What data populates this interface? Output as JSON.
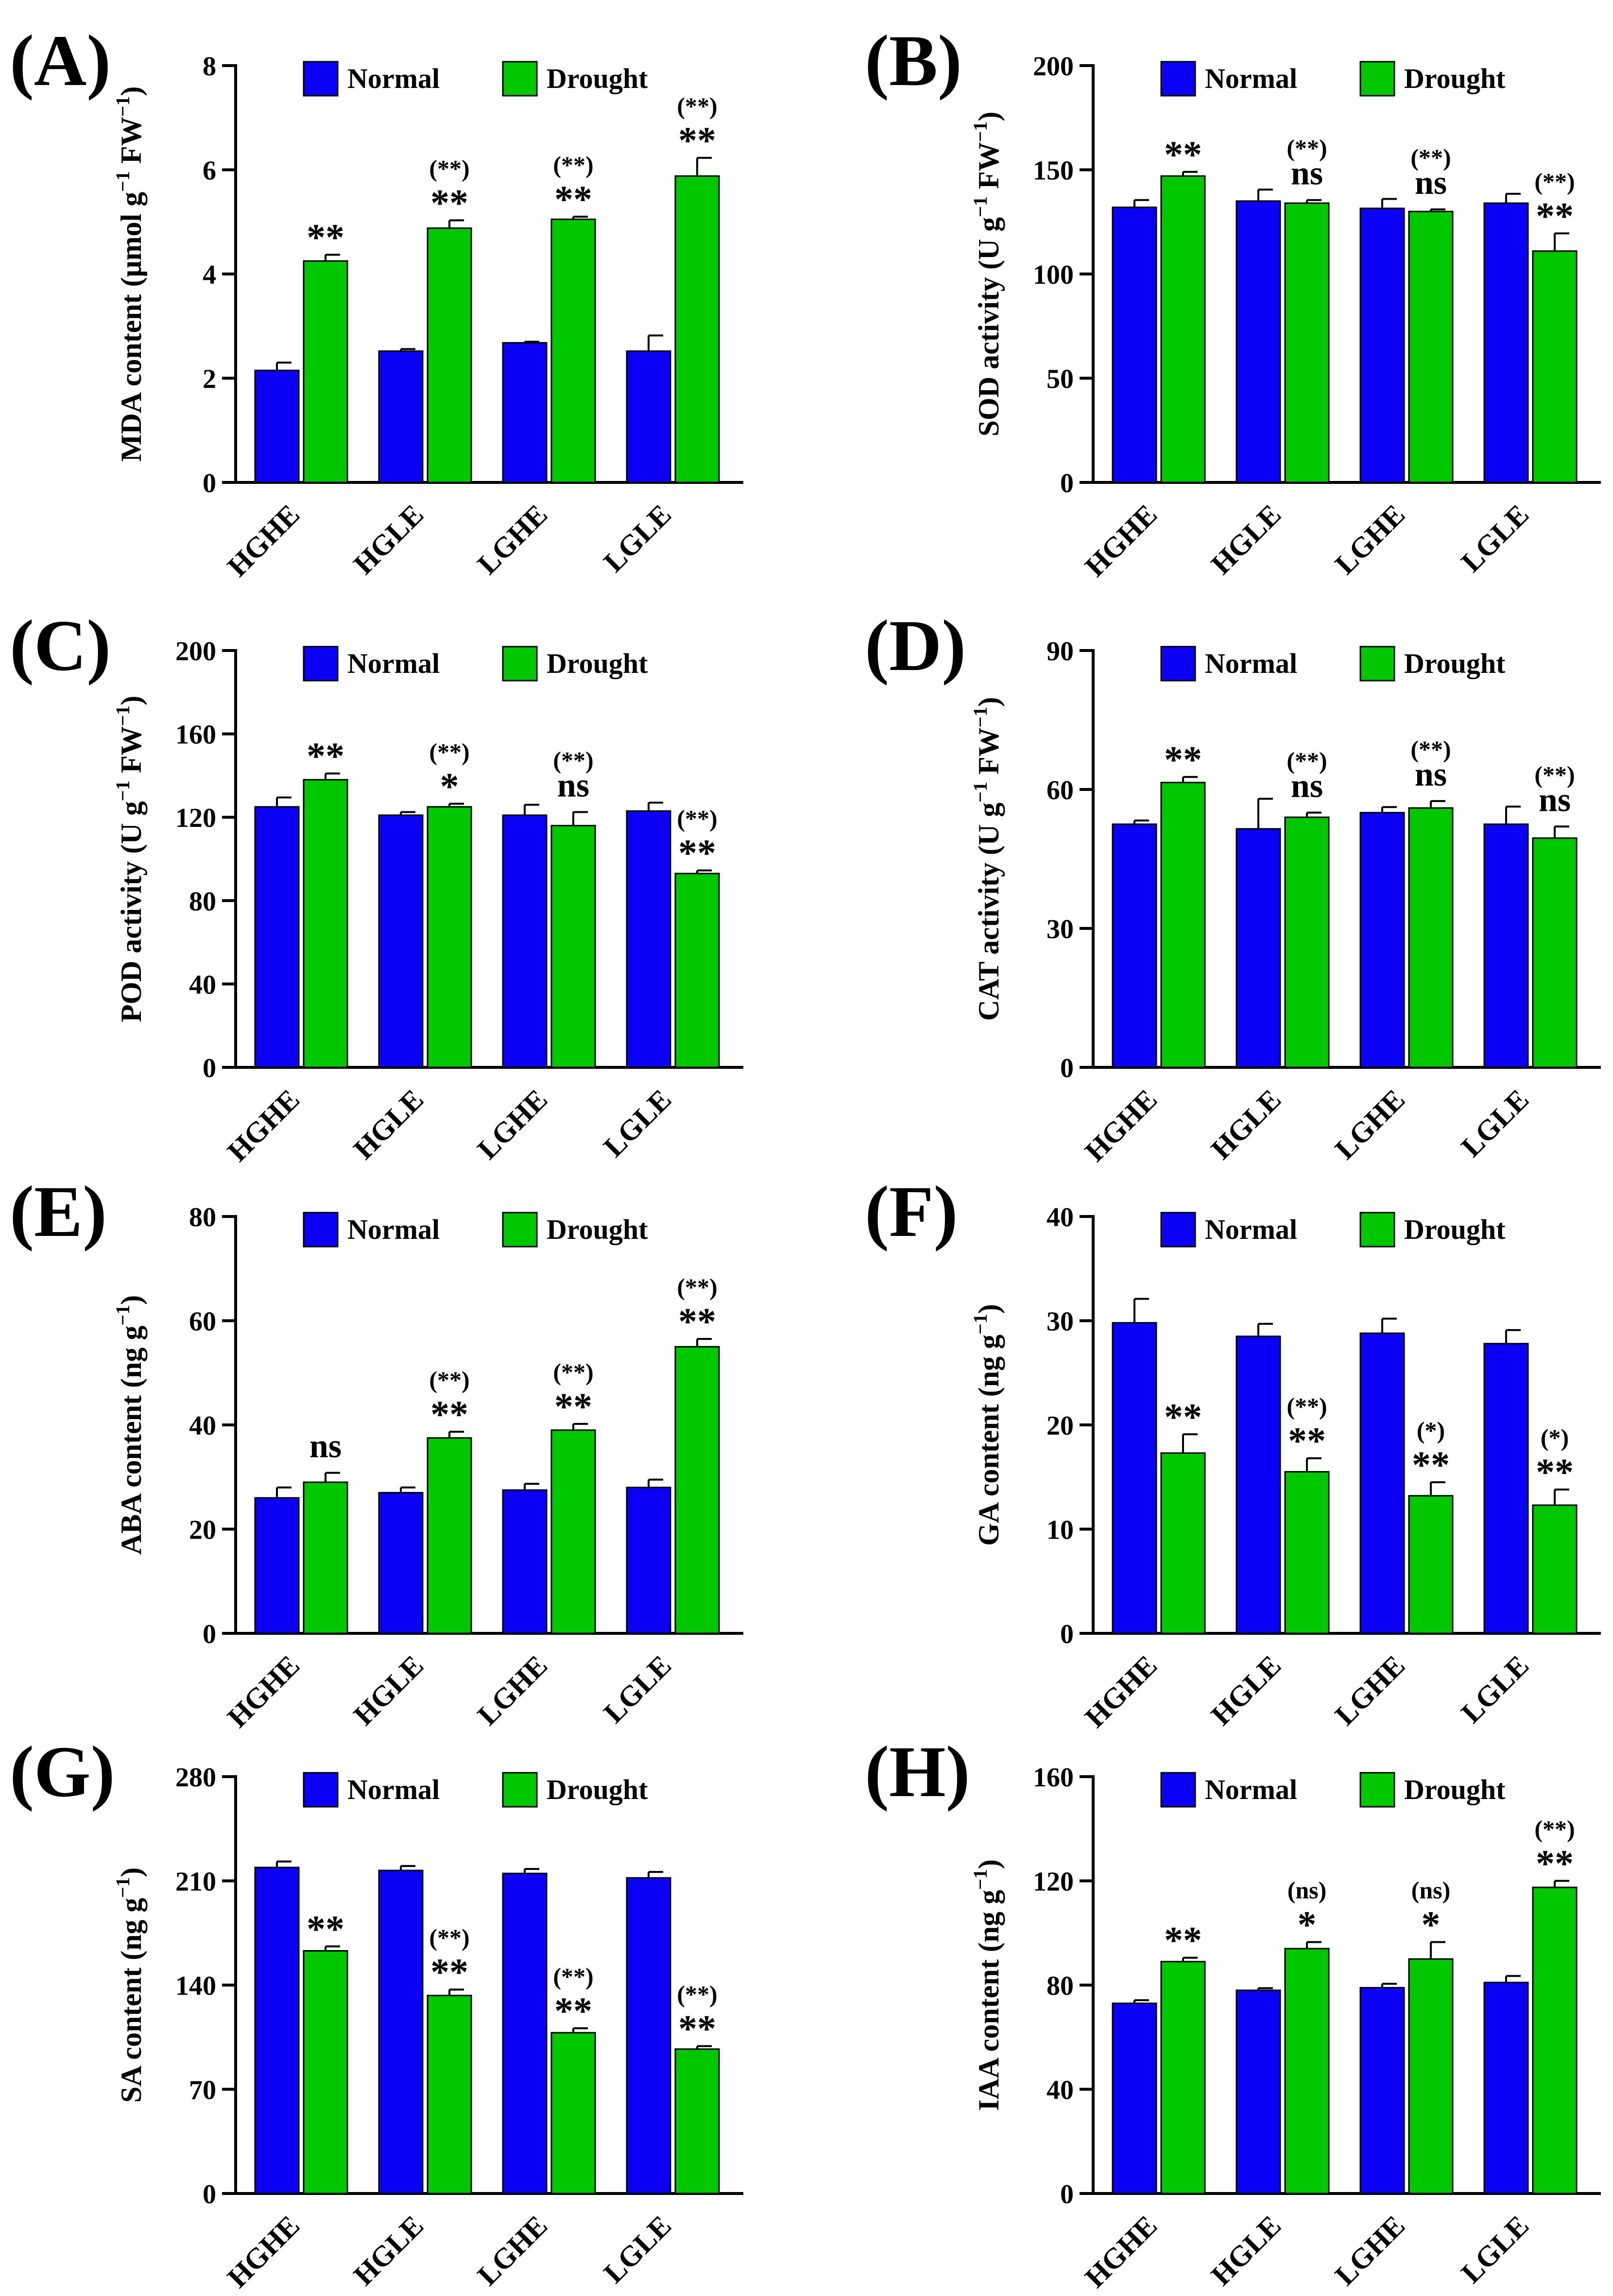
{
  "colors": {
    "normal": "#0b00f5",
    "drought": "#00c800"
  },
  "chart_data": [
    {
      "type": "bar",
      "panel_label": "(A)",
      "title": "",
      "ylabel": "MDA content (μmol g−1 FW−1)",
      "ylabel_main": "MDA content (μmol g",
      "ylabel_sup1": "−1",
      "ylabel_mid": " FW",
      "ylabel_sup2": "−1",
      "ylabel_end": ")",
      "ylim": [
        0,
        8
      ],
      "yticks": [
        0,
        2,
        4,
        6,
        8
      ],
      "categories": [
        "HGHE",
        "HGLE",
        "LGHE",
        "LGLE"
      ],
      "legend": [
        "Normal",
        "Drought"
      ],
      "series": [
        {
          "name": "Normal",
          "values": [
            2.15,
            2.52,
            2.68,
            2.52
          ],
          "errors": [
            0.15,
            0.04,
            0.02,
            0.3
          ]
        },
        {
          "name": "Drought",
          "values": [
            4.25,
            4.88,
            5.05,
            5.88
          ],
          "errors": [
            0.12,
            0.15,
            0.05,
            0.35
          ]
        }
      ],
      "annotations": [
        {
          "category": "HGHE",
          "sig": "**",
          "paren": ""
        },
        {
          "category": "HGLE",
          "sig": "**",
          "paren": "(**)"
        },
        {
          "category": "LGHE",
          "sig": "**",
          "paren": "(**)"
        },
        {
          "category": "LGLE",
          "sig": "**",
          "paren": "(**)"
        }
      ]
    },
    {
      "type": "bar",
      "panel_label": "(B)",
      "title": "",
      "ylabel": "SOD activity (U g−1 FW−1)",
      "ylabel_main": "SOD activity (U g",
      "ylabel_sup1": "−1",
      "ylabel_mid": " FW",
      "ylabel_sup2": "−1",
      "ylabel_end": ")",
      "ylim": [
        0,
        200
      ],
      "yticks": [
        0,
        50,
        100,
        150,
        200
      ],
      "categories": [
        "HGHE",
        "HGLE",
        "LGHE",
        "LGLE"
      ],
      "legend": [
        "Normal",
        "Drought"
      ],
      "series": [
        {
          "name": "Normal",
          "values": [
            132,
            135,
            131.5,
            134
          ],
          "errors": [
            3.5,
            5.5,
            4.5,
            4.5
          ]
        },
        {
          "name": "Drought",
          "values": [
            147,
            134,
            130,
            111
          ],
          "errors": [
            2,
            1.5,
            1,
            8.5
          ]
        }
      ],
      "annotations": [
        {
          "category": "HGHE",
          "sig": "**",
          "paren": ""
        },
        {
          "category": "HGLE",
          "sig": "ns",
          "paren": "(**)"
        },
        {
          "category": "LGHE",
          "sig": "ns",
          "paren": "(**)"
        },
        {
          "category": "LGLE",
          "sig": "**",
          "paren": "(**)"
        }
      ]
    },
    {
      "type": "bar",
      "panel_label": "(C)",
      "title": "",
      "ylabel": "POD activity (U g−1 FW−1)",
      "ylabel_main": "POD activity (U g",
      "ylabel_sup1": "−1",
      "ylabel_mid": " FW",
      "ylabel_sup2": "−1",
      "ylabel_end": ")",
      "ylim": [
        0,
        200
      ],
      "yticks": [
        0,
        40,
        80,
        120,
        160,
        200
      ],
      "categories": [
        "HGHE",
        "HGLE",
        "LGHE",
        "LGLE"
      ],
      "legend": [
        "Normal",
        "Drought"
      ],
      "series": [
        {
          "name": "Normal",
          "values": [
            125,
            121,
            121,
            123
          ],
          "errors": [
            4.5,
            1.5,
            5,
            4
          ]
        },
        {
          "name": "Drought",
          "values": [
            138,
            125,
            116,
            93
          ],
          "errors": [
            3,
            1.5,
            6.5,
            1.5
          ]
        }
      ],
      "annotations": [
        {
          "category": "HGHE",
          "sig": "**",
          "paren": ""
        },
        {
          "category": "HGLE",
          "sig": "*",
          "paren": "(**)"
        },
        {
          "category": "LGHE",
          "sig": "ns",
          "paren": "(**)"
        },
        {
          "category": "LGLE",
          "sig": "**",
          "paren": "(**)"
        }
      ]
    },
    {
      "type": "bar",
      "panel_label": "(D)",
      "title": "",
      "ylabel": "CAT activity (U g−1 FW−1)",
      "ylabel_main": "CAT activity (U g",
      "ylabel_sup1": "−1",
      "ylabel_mid": " FW",
      "ylabel_sup2": "−1",
      "ylabel_end": ")",
      "ylim": [
        0,
        90
      ],
      "yticks": [
        0,
        30,
        60,
        90
      ],
      "categories": [
        "HGHE",
        "HGLE",
        "LGHE",
        "LGLE"
      ],
      "legend": [
        "Normal",
        "Drought"
      ],
      "series": [
        {
          "name": "Normal",
          "values": [
            52.5,
            51.5,
            55,
            52.5
          ],
          "errors": [
            0.8,
            6.5,
            1.2,
            3.8
          ]
        },
        {
          "name": "Drought",
          "values": [
            61.5,
            54,
            56,
            49.5
          ],
          "errors": [
            1.2,
            1,
            1.5,
            2.5
          ]
        }
      ],
      "annotations": [
        {
          "category": "HGHE",
          "sig": "**",
          "paren": ""
        },
        {
          "category": "HGLE",
          "sig": "ns",
          "paren": "(**)"
        },
        {
          "category": "LGHE",
          "sig": "ns",
          "paren": "(**)"
        },
        {
          "category": "LGLE",
          "sig": "ns",
          "paren": "(**)"
        }
      ]
    },
    {
      "type": "bar",
      "panel_label": "(E)",
      "title": "",
      "ylabel": "ABA content (ng g−1)",
      "ylabel_main": "ABA content (ng g",
      "ylabel_sup1": "−1",
      "ylabel_mid": "",
      "ylabel_sup2": "",
      "ylabel_end": ")",
      "ylim": [
        0,
        80
      ],
      "yticks": [
        0,
        20,
        40,
        60,
        80
      ],
      "categories": [
        "HGHE",
        "HGLE",
        "LGHE",
        "LGLE"
      ],
      "legend": [
        "Normal",
        "Drought"
      ],
      "series": [
        {
          "name": "Normal",
          "values": [
            26,
            27,
            27.5,
            28
          ],
          "errors": [
            2,
            1,
            1.2,
            1.5
          ]
        },
        {
          "name": "Drought",
          "values": [
            29,
            37.5,
            39,
            55
          ],
          "errors": [
            1.8,
            1.2,
            1.2,
            1.5
          ]
        }
      ],
      "annotations": [
        {
          "category": "HGHE",
          "sig": "ns",
          "paren": ""
        },
        {
          "category": "HGLE",
          "sig": "**",
          "paren": "(**)"
        },
        {
          "category": "LGHE",
          "sig": "**",
          "paren": "(**)"
        },
        {
          "category": "LGLE",
          "sig": "**",
          "paren": "(**)"
        }
      ]
    },
    {
      "type": "bar",
      "panel_label": "(F)",
      "title": "",
      "ylabel": "GA content (ng g−1)",
      "ylabel_main": "GA content (ng g",
      "ylabel_sup1": "−1",
      "ylabel_mid": "",
      "ylabel_sup2": "",
      "ylabel_end": ")",
      "ylim": [
        0,
        40
      ],
      "yticks": [
        0,
        10,
        20,
        30,
        40
      ],
      "categories": [
        "HGHE",
        "HGLE",
        "LGHE",
        "LGLE"
      ],
      "legend": [
        "Normal",
        "Drought"
      ],
      "series": [
        {
          "name": "Normal",
          "values": [
            29.8,
            28.5,
            28.8,
            27.8
          ],
          "errors": [
            2.3,
            1.2,
            1.4,
            1.3
          ]
        },
        {
          "name": "Drought",
          "values": [
            17.3,
            15.5,
            13.2,
            12.3
          ],
          "errors": [
            1.8,
            1.3,
            1.3,
            1.5
          ]
        }
      ],
      "annotations": [
        {
          "category": "HGHE",
          "sig": "**",
          "paren": ""
        },
        {
          "category": "HGLE",
          "sig": "**",
          "paren": "(**)"
        },
        {
          "category": "LGHE",
          "sig": "**",
          "paren": "(*)"
        },
        {
          "category": "LGLE",
          "sig": "**",
          "paren": "(*)"
        }
      ]
    },
    {
      "type": "bar",
      "panel_label": "(G)",
      "title": "",
      "ylabel": "SA content (ng g−1)",
      "ylabel_main": "SA content (ng g",
      "ylabel_sup1": "−1",
      "ylabel_mid": "",
      "ylabel_sup2": "",
      "ylabel_end": ")",
      "ylim": [
        0,
        280
      ],
      "yticks": [
        0,
        70,
        140,
        210,
        280
      ],
      "categories": [
        "HGHE",
        "HGLE",
        "LGHE",
        "LGLE"
      ],
      "legend": [
        "Normal",
        "Drought"
      ],
      "series": [
        {
          "name": "Normal",
          "values": [
            219,
            217,
            215,
            212
          ],
          "errors": [
            4,
            3,
            3,
            4
          ]
        },
        {
          "name": "Drought",
          "values": [
            163,
            133,
            108,
            97
          ],
          "errors": [
            3,
            4,
            3,
            2
          ]
        }
      ],
      "annotations": [
        {
          "category": "HGHE",
          "sig": "**",
          "paren": ""
        },
        {
          "category": "HGLE",
          "sig": "**",
          "paren": "(**)"
        },
        {
          "category": "LGHE",
          "sig": "**",
          "paren": "(**)"
        },
        {
          "category": "LGLE",
          "sig": "**",
          "paren": "(**)"
        }
      ]
    },
    {
      "type": "bar",
      "panel_label": "(H)",
      "title": "",
      "ylabel": "IAA content (ng g−1)",
      "ylabel_main": "IAA content (ng g",
      "ylabel_sup1": "−1",
      "ylabel_mid": "",
      "ylabel_sup2": "",
      "ylabel_end": ")",
      "ylim": [
        0,
        160
      ],
      "yticks": [
        0,
        40,
        80,
        120,
        160
      ],
      "categories": [
        "HGHE",
        "HGLE",
        "LGHE",
        "LGLE"
      ],
      "legend": [
        "Normal",
        "Drought"
      ],
      "series": [
        {
          "name": "Normal",
          "values": [
            73,
            78,
            79,
            81
          ],
          "errors": [
            1.2,
            0.8,
            1.5,
            2.5
          ]
        },
        {
          "name": "Drought",
          "values": [
            89,
            94,
            90,
            117.5
          ],
          "errors": [
            1.5,
            2.5,
            6.5,
            2.5
          ]
        }
      ],
      "annotations": [
        {
          "category": "HGHE",
          "sig": "**",
          "paren": ""
        },
        {
          "category": "HGLE",
          "sig": "*",
          "paren": "(ns)"
        },
        {
          "category": "LGHE",
          "sig": "*",
          "paren": "(ns)"
        },
        {
          "category": "LGLE",
          "sig": "**",
          "paren": "(**)"
        }
      ]
    }
  ]
}
